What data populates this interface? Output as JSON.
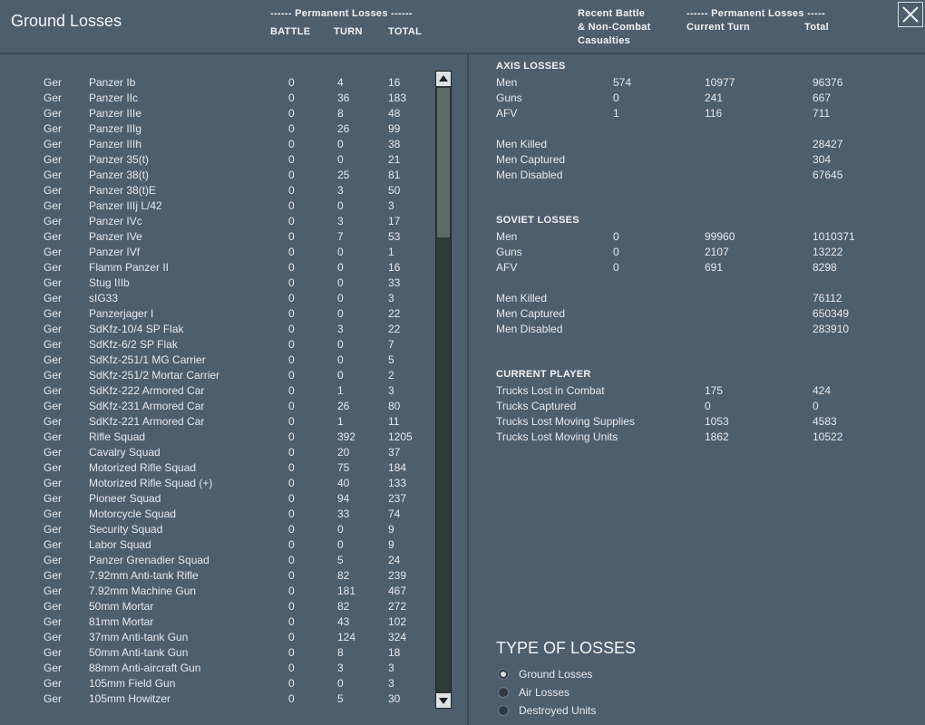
{
  "header": {
    "title": "Ground Losses",
    "left_group": "------ Permanent Losses ------",
    "left_columns": [
      "BATTLE",
      "TURN",
      "TOTAL"
    ],
    "right_recent": [
      "Recent Battle",
      "& Non-Combat",
      "Casualties"
    ],
    "right_group": "------ Permanent Losses -----",
    "right_columns": [
      "Current Turn",
      "Total"
    ]
  },
  "table": {
    "rows": [
      [
        "Ger",
        "Panzer Ib",
        0,
        4,
        16
      ],
      [
        "Ger",
        "Panzer IIc",
        0,
        36,
        183
      ],
      [
        "Ger",
        "Panzer IIIe",
        0,
        8,
        48
      ],
      [
        "Ger",
        "Panzer IIIg",
        0,
        26,
        99
      ],
      [
        "Ger",
        "Panzer IIIh",
        0,
        0,
        38
      ],
      [
        "Ger",
        "Panzer 35(t)",
        0,
        0,
        21
      ],
      [
        "Ger",
        "Panzer 38(t)",
        0,
        25,
        81
      ],
      [
        "Ger",
        "Panzer 38(t)E",
        0,
        3,
        50
      ],
      [
        "Ger",
        "Panzer IIIj L/42",
        0,
        0,
        3
      ],
      [
        "Ger",
        "Panzer IVc",
        0,
        3,
        17
      ],
      [
        "Ger",
        "Panzer IVe",
        0,
        7,
        53
      ],
      [
        "Ger",
        "Panzer IVf",
        0,
        0,
        1
      ],
      [
        "Ger",
        "Flamm Panzer II",
        0,
        0,
        16
      ],
      [
        "Ger",
        "Stug IIIb",
        0,
        0,
        33
      ],
      [
        "Ger",
        "sIG33",
        0,
        0,
        3
      ],
      [
        "Ger",
        "Panzerjager I",
        0,
        0,
        22
      ],
      [
        "Ger",
        "SdKfz-10/4 SP Flak",
        0,
        3,
        22
      ],
      [
        "Ger",
        "SdKfz-6/2 SP Flak",
        0,
        0,
        7
      ],
      [
        "Ger",
        "SdKfz-251/1 MG Carrier",
        0,
        0,
        5
      ],
      [
        "Ger",
        "SdKfz-251/2 Mortar Carrier",
        0,
        0,
        2
      ],
      [
        "Ger",
        "SdKfz-222 Armored Car",
        0,
        1,
        3
      ],
      [
        "Ger",
        "SdKfz-231 Armored Car",
        0,
        26,
        80
      ],
      [
        "Ger",
        "SdKfz-221 Armored Car",
        0,
        1,
        11
      ],
      [
        "Ger",
        "Rifle Squad",
        0,
        392,
        1205
      ],
      [
        "Ger",
        "Cavalry Squad",
        0,
        20,
        37
      ],
      [
        "Ger",
        "Motorized Rifle Squad",
        0,
        75,
        184
      ],
      [
        "Ger",
        "Motorized Rifle Squad (+)",
        0,
        40,
        133
      ],
      [
        "Ger",
        "Pioneer Squad",
        0,
        94,
        237
      ],
      [
        "Ger",
        "Motorcycle Squad",
        0,
        33,
        74
      ],
      [
        "Ger",
        "Security Squad",
        0,
        0,
        9
      ],
      [
        "Ger",
        "Labor Squad",
        0,
        0,
        9
      ],
      [
        "Ger",
        "Panzer Grenadier Squad",
        0,
        5,
        24
      ],
      [
        "Ger",
        "7.92mm Anti-tank Rifle",
        0,
        82,
        239
      ],
      [
        "Ger",
        "7.92mm Machine Gun",
        0,
        181,
        467
      ],
      [
        "Ger",
        "50mm Mortar",
        0,
        82,
        272
      ],
      [
        "Ger",
        "81mm Mortar",
        0,
        43,
        102
      ],
      [
        "Ger",
        "37mm Anti-tank Gun",
        0,
        124,
        324
      ],
      [
        "Ger",
        "50mm Anti-tank Gun",
        0,
        8,
        18
      ],
      [
        "Ger",
        "88mm Anti-aircraft Gun",
        0,
        3,
        3
      ],
      [
        "Ger",
        "105mm Field Gun",
        0,
        0,
        3
      ],
      [
        "Ger",
        "105mm Howitzer",
        0,
        5,
        30
      ]
    ]
  },
  "summary": [
    {
      "title": "AXIS LOSSES",
      "rows": [
        [
          "Men",
          574,
          10977,
          96376
        ],
        [
          "Guns",
          0,
          241,
          667
        ],
        [
          "AFV",
          1,
          116,
          711
        ]
      ],
      "details": [
        [
          "Men Killed",
          28427
        ],
        [
          "Men Captured",
          304
        ],
        [
          "Men Disabled",
          67645
        ]
      ]
    },
    {
      "title": "SOVIET LOSSES",
      "rows": [
        [
          "Men",
          0,
          99960,
          1010371
        ],
        [
          "Guns",
          0,
          2107,
          13222
        ],
        [
          "AFV",
          0,
          691,
          8298
        ]
      ],
      "details": [
        [
          "Men Killed",
          76112
        ],
        [
          "Men Captured",
          650349
        ],
        [
          "Men Disabled",
          283910
        ]
      ]
    }
  ],
  "current_player": {
    "title": "CURRENT PLAYER",
    "rows": [
      [
        "Trucks Lost in Combat",
        175,
        424
      ],
      [
        "Trucks Captured",
        0,
        0
      ],
      [
        "Trucks Lost Moving Supplies",
        1053,
        4583
      ],
      [
        "Trucks Lost Moving Units",
        1862,
        10522
      ]
    ]
  },
  "loss_types": {
    "title": "TYPE OF LOSSES",
    "options": [
      {
        "label": "Ground Losses",
        "selected": true
      },
      {
        "label": "Air Losses",
        "selected": false
      },
      {
        "label": "Destroyed Units",
        "selected": false
      }
    ]
  }
}
